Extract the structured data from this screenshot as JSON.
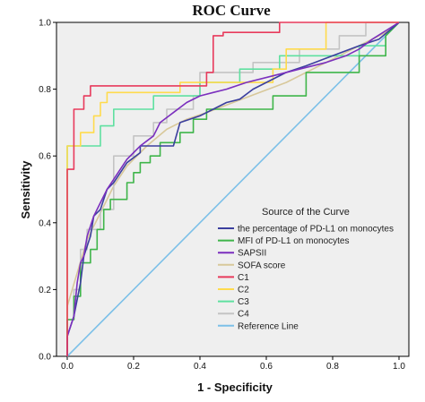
{
  "chart_data": {
    "type": "line",
    "title": "ROC Curve",
    "xlabel": "1 - Specificity",
    "ylabel": "Sensitivity",
    "xlim": [
      0.0,
      1.0
    ],
    "ylim": [
      0.0,
      1.0
    ],
    "x_ticks": [
      "0.0",
      "0.2",
      "0.4",
      "0.6",
      "0.8",
      "1.0"
    ],
    "y_ticks": [
      "0.0",
      "0.2",
      "0.4",
      "0.6",
      "0.8",
      "1.0"
    ],
    "grid": false,
    "background": "#efefef",
    "legend": {
      "title": "Source of the Curve",
      "placement": "lower-right"
    },
    "series": [
      {
        "name": "the percentage of PD-L1 on monocytes",
        "color": "#3b3f9e",
        "points": [
          [
            0,
            0
          ],
          [
            0,
            0.06
          ],
          [
            0.02,
            0.12
          ],
          [
            0.04,
            0.22
          ],
          [
            0.05,
            0.3
          ],
          [
            0.07,
            0.36
          ],
          [
            0.08,
            0.42
          ],
          [
            0.1,
            0.44
          ],
          [
            0.12,
            0.5
          ],
          [
            0.14,
            0.52
          ],
          [
            0.16,
            0.55
          ],
          [
            0.18,
            0.58
          ],
          [
            0.22,
            0.61
          ],
          [
            0.22,
            0.63
          ],
          [
            0.32,
            0.63
          ],
          [
            0.34,
            0.7
          ],
          [
            0.4,
            0.72
          ],
          [
            0.44,
            0.74
          ],
          [
            0.48,
            0.76
          ],
          [
            0.52,
            0.77
          ],
          [
            0.56,
            0.8
          ],
          [
            0.6,
            0.82
          ],
          [
            0.66,
            0.85
          ],
          [
            0.72,
            0.87
          ],
          [
            0.8,
            0.9
          ],
          [
            0.88,
            0.93
          ],
          [
            0.94,
            0.95
          ],
          [
            1,
            1
          ]
        ]
      },
      {
        "name": "MFI of PD-L1 on monocytes",
        "color": "#3fb54a",
        "points": [
          [
            0,
            0
          ],
          [
            0,
            0.11
          ],
          [
            0.02,
            0.11
          ],
          [
            0.02,
            0.18
          ],
          [
            0.04,
            0.18
          ],
          [
            0.04,
            0.28
          ],
          [
            0.07,
            0.28
          ],
          [
            0.07,
            0.32
          ],
          [
            0.09,
            0.32
          ],
          [
            0.09,
            0.38
          ],
          [
            0.11,
            0.38
          ],
          [
            0.11,
            0.44
          ],
          [
            0.13,
            0.44
          ],
          [
            0.13,
            0.47
          ],
          [
            0.18,
            0.47
          ],
          [
            0.18,
            0.52
          ],
          [
            0.2,
            0.52
          ],
          [
            0.2,
            0.55
          ],
          [
            0.22,
            0.55
          ],
          [
            0.22,
            0.58
          ],
          [
            0.25,
            0.58
          ],
          [
            0.25,
            0.6
          ],
          [
            0.28,
            0.6
          ],
          [
            0.28,
            0.64
          ],
          [
            0.34,
            0.64
          ],
          [
            0.34,
            0.67
          ],
          [
            0.38,
            0.67
          ],
          [
            0.38,
            0.71
          ],
          [
            0.42,
            0.71
          ],
          [
            0.42,
            0.74
          ],
          [
            0.62,
            0.74
          ],
          [
            0.62,
            0.78
          ],
          [
            0.72,
            0.78
          ],
          [
            0.72,
            0.85
          ],
          [
            0.88,
            0.85
          ],
          [
            0.88,
            0.9
          ],
          [
            0.96,
            0.9
          ],
          [
            0.96,
            0.96
          ],
          [
            1,
            1
          ]
        ]
      },
      {
        "name": "SAPSII",
        "color": "#7b2fbe",
        "points": [
          [
            0,
            0
          ],
          [
            0,
            0.06
          ],
          [
            0.02,
            0.12
          ],
          [
            0.03,
            0.22
          ],
          [
            0.04,
            0.28
          ],
          [
            0.05,
            0.3
          ],
          [
            0.06,
            0.36
          ],
          [
            0.08,
            0.42
          ],
          [
            0.1,
            0.46
          ],
          [
            0.12,
            0.5
          ],
          [
            0.14,
            0.53
          ],
          [
            0.16,
            0.56
          ],
          [
            0.18,
            0.59
          ],
          [
            0.2,
            0.61
          ],
          [
            0.22,
            0.63
          ],
          [
            0.26,
            0.66
          ],
          [
            0.28,
            0.7
          ],
          [
            0.32,
            0.73
          ],
          [
            0.36,
            0.76
          ],
          [
            0.4,
            0.78
          ],
          [
            0.44,
            0.79
          ],
          [
            0.48,
            0.8
          ],
          [
            0.54,
            0.82
          ],
          [
            0.62,
            0.84
          ],
          [
            0.7,
            0.86
          ],
          [
            0.78,
            0.88
          ],
          [
            0.84,
            0.9
          ],
          [
            0.88,
            0.92
          ],
          [
            0.92,
            0.95
          ],
          [
            1,
            1
          ]
        ]
      },
      {
        "name": "SOFA score",
        "color": "#d8c89a",
        "points": [
          [
            0,
            0
          ],
          [
            0,
            0.15
          ],
          [
            0.03,
            0.25
          ],
          [
            0.06,
            0.35
          ],
          [
            0.1,
            0.43
          ],
          [
            0.14,
            0.51
          ],
          [
            0.18,
            0.57
          ],
          [
            0.24,
            0.63
          ],
          [
            0.3,
            0.68
          ],
          [
            0.36,
            0.71
          ],
          [
            0.42,
            0.73
          ],
          [
            0.5,
            0.76
          ],
          [
            0.58,
            0.79
          ],
          [
            0.66,
            0.82
          ],
          [
            0.74,
            0.86
          ],
          [
            0.82,
            0.9
          ],
          [
            0.9,
            0.94
          ],
          [
            0.96,
            0.97
          ],
          [
            1,
            1
          ]
        ]
      },
      {
        "name": "C1",
        "color": "#e83a5c",
        "points": [
          [
            0,
            0
          ],
          [
            0,
            0.56
          ],
          [
            0.02,
            0.56
          ],
          [
            0.02,
            0.74
          ],
          [
            0.05,
            0.74
          ],
          [
            0.05,
            0.78
          ],
          [
            0.07,
            0.78
          ],
          [
            0.07,
            0.81
          ],
          [
            0.42,
            0.81
          ],
          [
            0.42,
            0.85
          ],
          [
            0.44,
            0.85
          ],
          [
            0.44,
            0.96
          ],
          [
            0.47,
            0.96
          ],
          [
            0.47,
            0.97
          ],
          [
            0.64,
            0.97
          ],
          [
            0.64,
            1.0
          ],
          [
            1,
            1
          ]
        ]
      },
      {
        "name": "C2",
        "color": "#ffdb4d",
        "points": [
          [
            0,
            0
          ],
          [
            0,
            0.63
          ],
          [
            0.04,
            0.63
          ],
          [
            0.04,
            0.67
          ],
          [
            0.08,
            0.67
          ],
          [
            0.08,
            0.72
          ],
          [
            0.1,
            0.72
          ],
          [
            0.1,
            0.76
          ],
          [
            0.12,
            0.76
          ],
          [
            0.12,
            0.79
          ],
          [
            0.34,
            0.79
          ],
          [
            0.34,
            0.82
          ],
          [
            0.62,
            0.82
          ],
          [
            0.62,
            0.86
          ],
          [
            0.66,
            0.86
          ],
          [
            0.66,
            0.92
          ],
          [
            0.78,
            0.92
          ],
          [
            0.78,
            1.0
          ],
          [
            1,
            1
          ]
        ]
      },
      {
        "name": "C3",
        "color": "#5fe0a0",
        "points": [
          [
            0,
            0
          ],
          [
            0,
            0.63
          ],
          [
            0.1,
            0.63
          ],
          [
            0.1,
            0.69
          ],
          [
            0.14,
            0.69
          ],
          [
            0.14,
            0.74
          ],
          [
            0.26,
            0.74
          ],
          [
            0.26,
            0.78
          ],
          [
            0.4,
            0.78
          ],
          [
            0.4,
            0.82
          ],
          [
            0.52,
            0.82
          ],
          [
            0.52,
            0.86
          ],
          [
            0.64,
            0.86
          ],
          [
            0.64,
            0.9
          ],
          [
            0.88,
            0.9
          ],
          [
            0.88,
            0.93
          ],
          [
            0.96,
            0.93
          ],
          [
            0.96,
            0.96
          ],
          [
            1,
            1
          ]
        ]
      },
      {
        "name": "C4",
        "color": "#c4c4c4",
        "points": [
          [
            0,
            0
          ],
          [
            0,
            0.11
          ],
          [
            0.02,
            0.11
          ],
          [
            0.02,
            0.2
          ],
          [
            0.04,
            0.2
          ],
          [
            0.04,
            0.32
          ],
          [
            0.06,
            0.32
          ],
          [
            0.06,
            0.38
          ],
          [
            0.1,
            0.38
          ],
          [
            0.1,
            0.44
          ],
          [
            0.14,
            0.44
          ],
          [
            0.14,
            0.6
          ],
          [
            0.2,
            0.6
          ],
          [
            0.2,
            0.66
          ],
          [
            0.26,
            0.66
          ],
          [
            0.26,
            0.7
          ],
          [
            0.3,
            0.7
          ],
          [
            0.3,
            0.74
          ],
          [
            0.38,
            0.74
          ],
          [
            0.38,
            0.78
          ],
          [
            0.4,
            0.78
          ],
          [
            0.4,
            0.85
          ],
          [
            0.56,
            0.85
          ],
          [
            0.56,
            0.88
          ],
          [
            0.7,
            0.88
          ],
          [
            0.7,
            0.92
          ],
          [
            0.82,
            0.92
          ],
          [
            0.82,
            0.96
          ],
          [
            0.9,
            0.96
          ],
          [
            0.9,
            1.0
          ],
          [
            1,
            1
          ]
        ]
      },
      {
        "name": "Reference Line",
        "color": "#7cc0e8",
        "points": [
          [
            0,
            0
          ],
          [
            1,
            1
          ]
        ]
      }
    ]
  }
}
